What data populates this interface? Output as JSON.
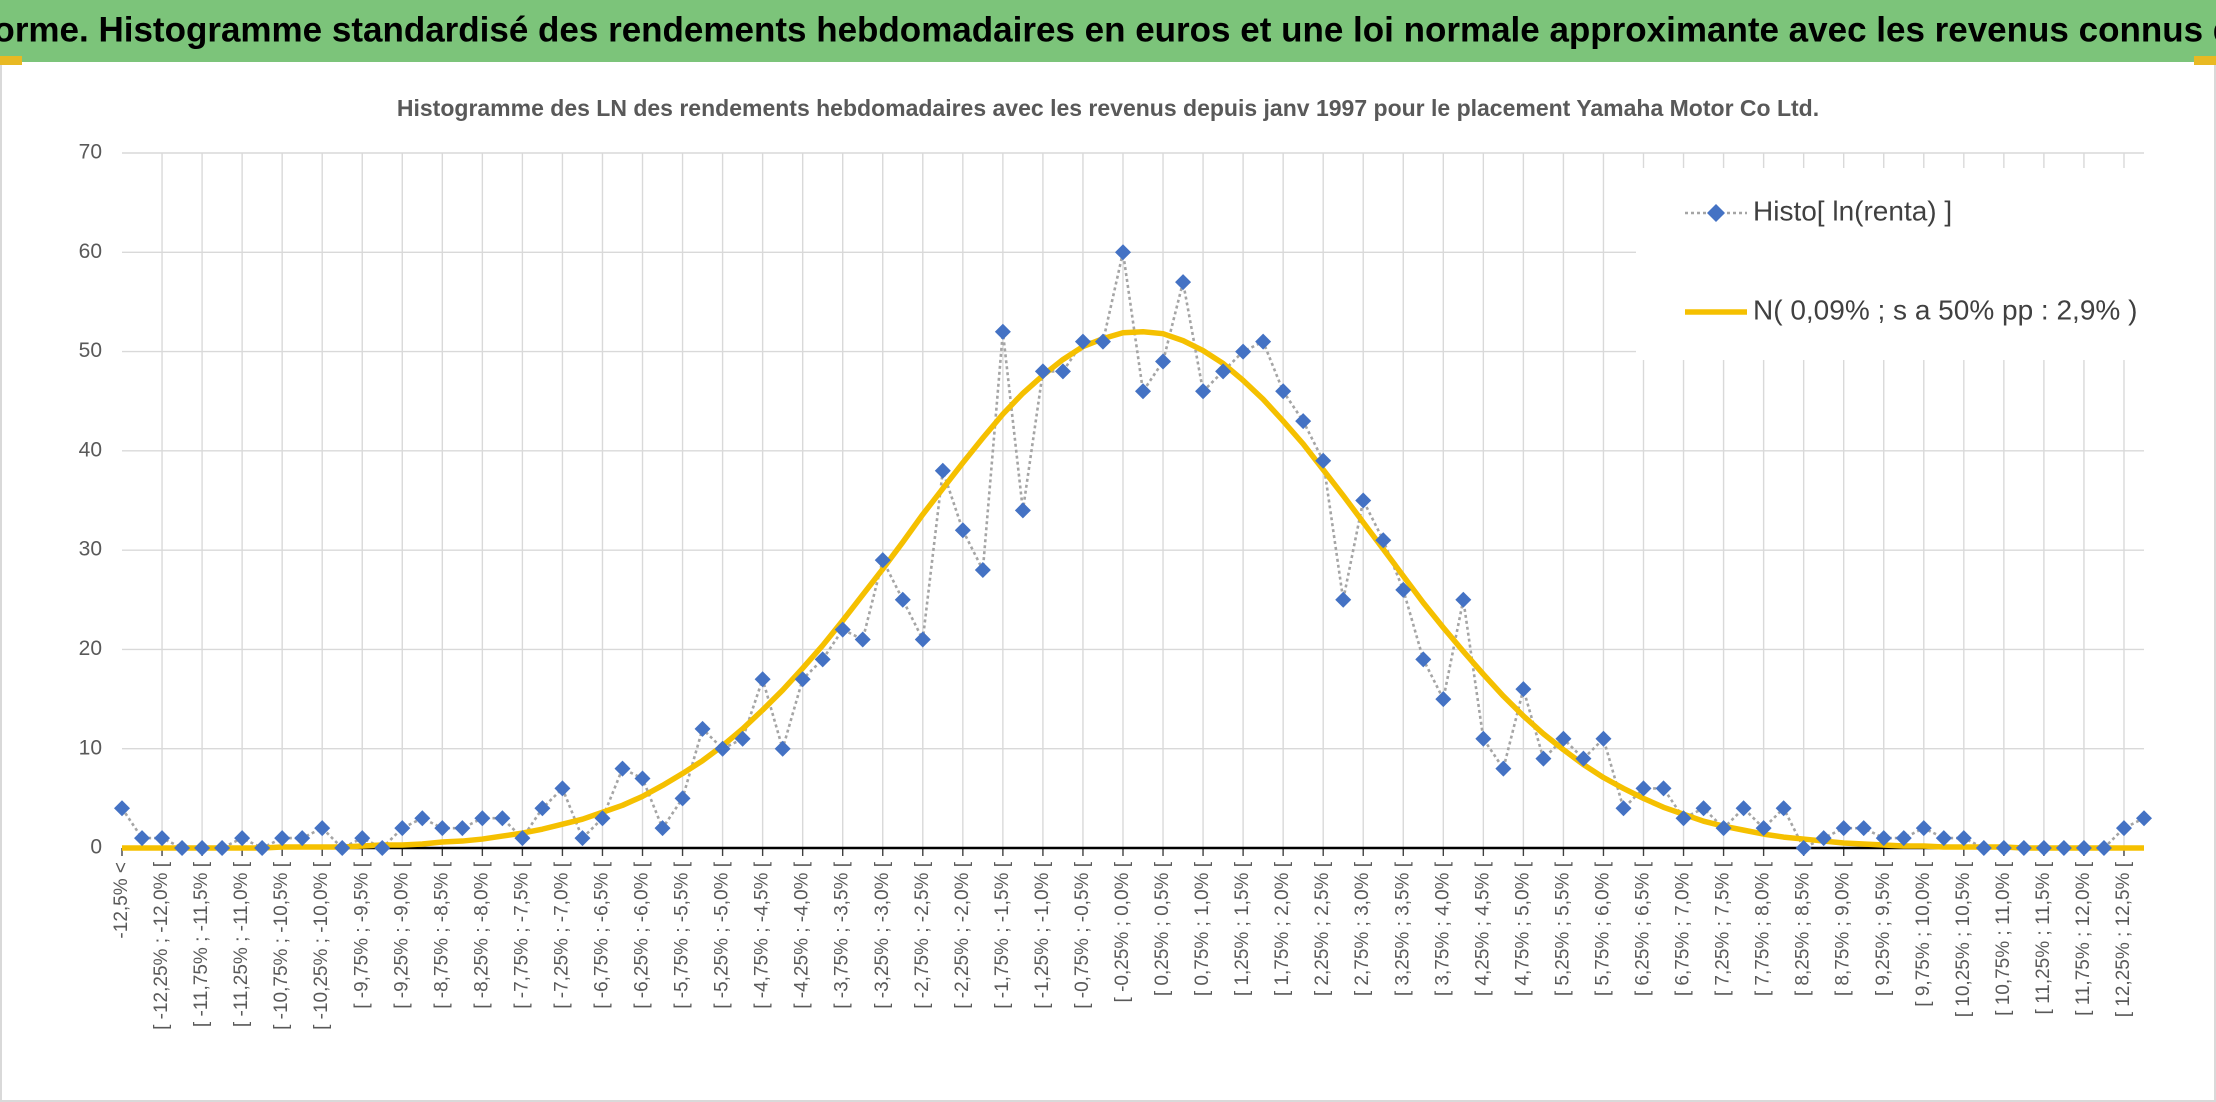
{
  "chart_data": {
    "type": "line",
    "title": "ADAM Informe. Histogramme standardisé des rendements hebdomadaires en euros et une loi normale approximante avec les revenus connus distribués",
    "subtitle": "Histogramme des LN des rendements hebdomadaires avec les revenus depuis janv 1997 pour le placement Yamaha Motor Co Ltd.",
    "categories": [
      "-12,5% <",
      null,
      "[ -12,25% ; -12,0% [",
      null,
      "[ -11,75% ; -11,5% [",
      null,
      "[ -11,25% ; -11,0% [",
      null,
      "[ -10,75% ; -10,5% [",
      null,
      "[ -10,25% ; -10,0% [",
      null,
      "[ -9,75% ; -9,5% [",
      null,
      "[ -9,25% ; -9,0% [",
      null,
      "[ -8,75% ; -8,5% [",
      null,
      "[ -8,25% ; -8,0% [",
      null,
      "[ -7,75% ; -7,5% [",
      null,
      "[ -7,25% ; -7,0% [",
      null,
      "[ -6,75% ; -6,5% [",
      null,
      "[ -6,25% ; -6,0% [",
      null,
      "[ -5,75% ; -5,5% [",
      null,
      "[ -5,25% ; -5,0% [",
      null,
      "[ -4,75% ; -4,5% [",
      null,
      "[ -4,25% ; -4,0% [",
      null,
      "[ -3,75% ; -3,5% [",
      null,
      "[ -3,25% ; -3,0% [",
      null,
      "[ -2,75% ; -2,5% [",
      null,
      "[ -2,25% ; -2,0% [",
      null,
      "[ -1,75% ; -1,5% [",
      null,
      "[ -1,25% ; -1,0% [",
      null,
      "[ -0,75% ; -0,5% [",
      null,
      "[ -0,25% ; 0,0% [",
      null,
      "[ 0,25% ; 0,5% [",
      null,
      "[ 0,75% ; 1,0% [",
      null,
      "[ 1,25% ; 1,5% [",
      null,
      "[ 1,75% ; 2,0% [",
      null,
      "[ 2,25% ; 2,5% [",
      null,
      "[ 2,75% ; 3,0% [",
      null,
      "[ 3,25% ; 3,5% [",
      null,
      "[ 3,75% ; 4,0% [",
      null,
      "[ 4,25% ; 4,5% [",
      null,
      "[ 4,75% ; 5,0% [",
      null,
      "[ 5,25% ; 5,5% [",
      null,
      "[ 5,75% ; 6,0% [",
      null,
      "[ 6,25% ; 6,5% [",
      null,
      "[ 6,75% ; 7,0% [",
      null,
      "[ 7,25% ; 7,5% [",
      null,
      "[ 7,75% ; 8,0% [",
      null,
      "[ 8,25% ; 8,5% [",
      null,
      "[ 8,75% ; 9,0% [",
      null,
      "[ 9,25% ; 9,5% [",
      null,
      "[ 9,75% ; 10,0% [",
      null,
      "[ 10,25% ; 10,5% [",
      null,
      "[ 10,75% ; 11,0% [",
      null,
      "[ 11,25% ; 11,5% [",
      null,
      "[ 11,75% ; 12,0% [",
      null,
      "[ 12,25% ; 12,5% [",
      null
    ],
    "series": [
      {
        "name": "Histo[ ln(renta) ]",
        "color": "#4472c4",
        "line_color": "#a5a5a5",
        "values": [
          4,
          1,
          1,
          0,
          0,
          0,
          1,
          0,
          1,
          1,
          2,
          0,
          1,
          0,
          2,
          3,
          2,
          2,
          3,
          3,
          1,
          4,
          6,
          1,
          3,
          8,
          7,
          2,
          5,
          12,
          10,
          11,
          17,
          10,
          17,
          19,
          22,
          21,
          29,
          25,
          21,
          38,
          32,
          28,
          52,
          34,
          48,
          48,
          51,
          51,
          60,
          46,
          49,
          57,
          46,
          48,
          50,
          51,
          46,
          43,
          39,
          25,
          35,
          31,
          26,
          19,
          15,
          25,
          11,
          8,
          16,
          9,
          11,
          9,
          11,
          4,
          6,
          6,
          3,
          4,
          2,
          4,
          2,
          4,
          0,
          1,
          2,
          2,
          1,
          1,
          2,
          1,
          1,
          0,
          0,
          0,
          0,
          0,
          0,
          0,
          2,
          3
        ]
      },
      {
        "name": "N( 0,09% ; s a 50% pp : 2,9% )",
        "color": "#f5c000",
        "values": [
          0.0,
          0.0,
          0.0,
          0.0,
          0.0,
          0.0,
          0.0,
          0.0,
          0.1,
          0.1,
          0.1,
          0.1,
          0.2,
          0.3,
          0.3,
          0.4,
          0.6,
          0.7,
          0.9,
          1.2,
          1.5,
          1.9,
          2.4,
          2.9,
          3.6,
          4.3,
          5.2,
          6.3,
          7.5,
          8.8,
          10.3,
          12.0,
          13.9,
          15.9,
          18.1,
          20.4,
          22.9,
          25.5,
          28.1,
          30.8,
          33.6,
          36.2,
          38.8,
          41.3,
          43.7,
          45.8,
          47.6,
          49.2,
          50.5,
          51.3,
          51.9,
          52.0,
          51.8,
          51.1,
          50.1,
          48.8,
          47.1,
          45.2,
          43.0,
          40.7,
          38.1,
          35.5,
          32.8,
          30.1,
          27.4,
          24.7,
          22.2,
          19.8,
          17.5,
          15.3,
          13.3,
          11.5,
          9.9,
          8.4,
          7.1,
          6.0,
          5.0,
          4.1,
          3.4,
          2.7,
          2.2,
          1.8,
          1.4,
          1.1,
          0.9,
          0.7,
          0.5,
          0.4,
          0.3,
          0.2,
          0.2,
          0.1,
          0.1,
          0.1,
          0.1,
          0.0,
          0.0,
          0.0,
          0.0,
          0.0,
          0.0,
          0.0
        ]
      }
    ],
    "ylim": [
      0,
      70
    ],
    "yticks": [
      0,
      10,
      20,
      30,
      40,
      50,
      60,
      70
    ],
    "grid": true,
    "legend": "top-right"
  }
}
